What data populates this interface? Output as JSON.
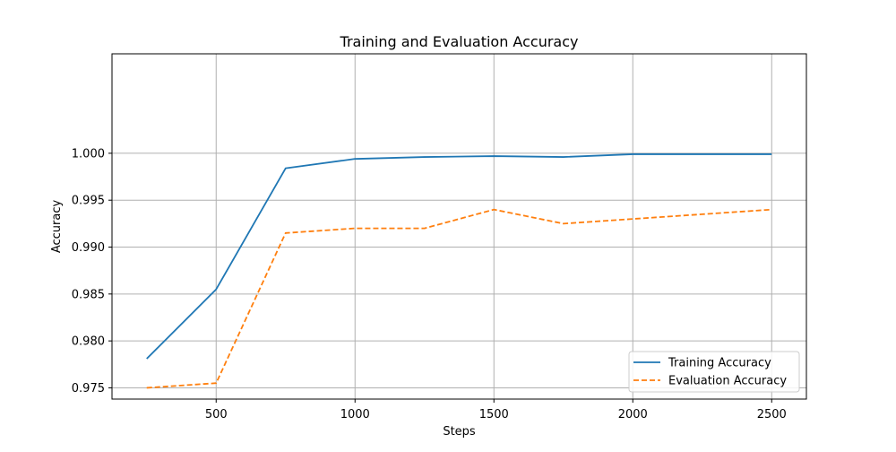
{
  "chart_data": {
    "type": "line",
    "title": "Training and Evaluation Accuracy",
    "xlabel": "Steps",
    "ylabel": "Accuracy",
    "xlim": [
      125,
      2625
    ],
    "ylim": [
      0.9738,
      1.0106
    ],
    "xticks": [
      500,
      1000,
      1500,
      2000,
      2500
    ],
    "yticks": [
      0.975,
      0.98,
      0.985,
      0.99,
      0.995,
      1.0
    ],
    "xtick_labels": [
      "500",
      "1000",
      "1500",
      "2000",
      "2500"
    ],
    "ytick_labels": [
      "0.975",
      "0.980",
      "0.985",
      "0.990",
      "0.995",
      "1.000"
    ],
    "grid": true,
    "legend_position": "bottom-right",
    "series": [
      {
        "name": "Training Accuracy",
        "color": "#1f77b4",
        "style": "solid",
        "x": [
          250,
          500,
          750,
          1000,
          1250,
          1500,
          1750,
          2000,
          2250,
          2500
        ],
        "y": [
          0.9781,
          0.9855,
          0.9984,
          0.9994,
          0.9996,
          0.9997,
          0.9996,
          0.9999,
          0.9999,
          0.9999
        ]
      },
      {
        "name": "Evaluation Accuracy",
        "color": "#ff7f0e",
        "style": "dashed",
        "x": [
          250,
          500,
          750,
          1000,
          1250,
          1500,
          1750,
          2000,
          2250,
          2500
        ],
        "y": [
          0.975,
          0.9755,
          0.9915,
          0.992,
          0.992,
          0.994,
          0.9925,
          0.993,
          0.9935,
          0.994
        ]
      }
    ]
  }
}
